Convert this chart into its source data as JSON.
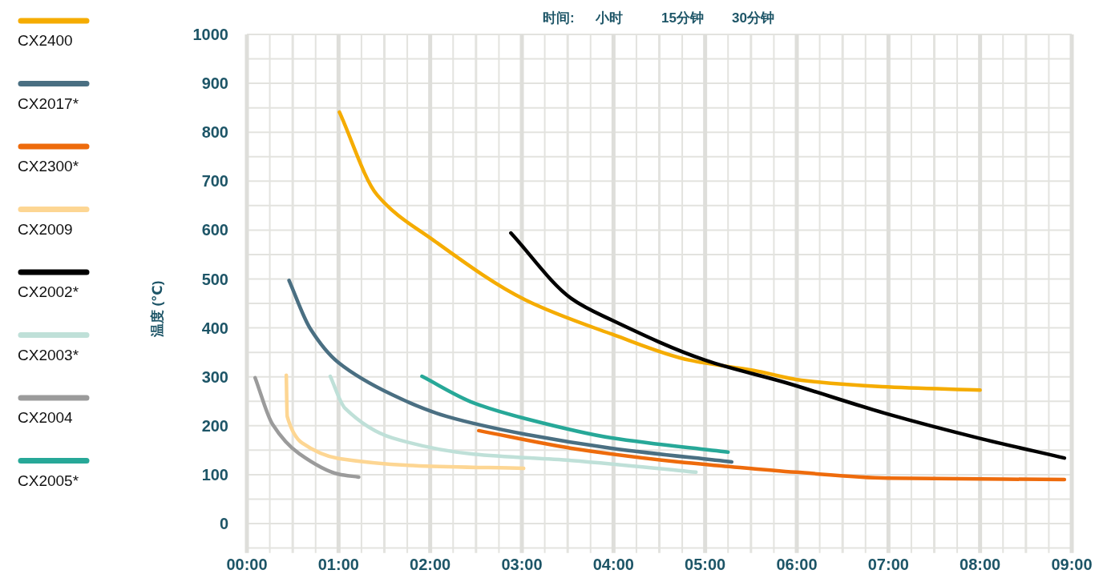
{
  "chart_data": {
    "type": "line",
    "ylabel": "温度 (℃)",
    "annotations": [
      "时间:",
      "小时",
      "15分钟",
      "30分钟"
    ],
    "xlim": [
      0,
      9
    ],
    "ylim": [
      -60,
      1000
    ],
    "xticks": [
      {
        "value": 0,
        "label": "00:00"
      },
      {
        "value": 1,
        "label": "01:00"
      },
      {
        "value": 2,
        "label": "02:00"
      },
      {
        "value": 3,
        "label": "03:00"
      },
      {
        "value": 4,
        "label": "04:00"
      },
      {
        "value": 5,
        "label": "05:00"
      },
      {
        "value": 6,
        "label": "06:00"
      },
      {
        "value": 7,
        "label": "07:00"
      },
      {
        "value": 8,
        "label": "08:00"
      },
      {
        "value": 9,
        "label": "09:00"
      }
    ],
    "yticks": [
      0,
      100,
      200,
      300,
      400,
      500,
      600,
      700,
      800,
      900,
      1000
    ],
    "grid": true,
    "legend": "left",
    "marker": "none",
    "line_style": "solid",
    "series": [
      {
        "name": "CX2400",
        "color": "#f5ac00",
        "x": [
          1.01,
          1.42,
          2.03,
          3.04,
          4.0,
          4.83,
          5.53,
          6.05,
          6.93,
          8.0
        ],
        "values": [
          841,
          672,
          580,
          457,
          386,
          334,
          313,
          293,
          280,
          273
        ]
      },
      {
        "name": "CX2017*",
        "color": "#4a6f82",
        "x": [
          0.46,
          0.69,
          1.0,
          1.59,
          2.18,
          3.05,
          3.98,
          5.29
        ],
        "values": [
          497,
          399,
          329,
          263,
          219,
          182,
          154,
          126
        ]
      },
      {
        "name": "CX2300*",
        "color": "#ee6b0c",
        "x": [
          2.53,
          3.54,
          4.71,
          5.18,
          5.99,
          6.99,
          8.92
        ],
        "values": [
          190,
          154,
          126,
          118,
          105,
          93,
          90
        ]
      },
      {
        "name": "CX2009",
        "color": "#fdd693",
        "x": [
          0.43,
          0.44,
          0.6,
          1.0,
          1.88,
          3.02
        ],
        "values": [
          303,
          219,
          165,
          133,
          118,
          113
        ]
      },
      {
        "name": "CX2002*",
        "color": "#000000",
        "x": [
          2.88,
          3.54,
          3.98,
          5.0,
          5.88,
          6.99,
          7.98,
          8.92
        ],
        "values": [
          594,
          460,
          416,
          334,
          288,
          224,
          175,
          134
        ]
      },
      {
        "name": "CX2003*",
        "color": "#bfe0d8",
        "x": [
          0.91,
          1.07,
          1.59,
          2.47,
          3.54,
          4.9
        ],
        "values": [
          301,
          236,
          175,
          142,
          129,
          105
        ]
      },
      {
        "name": "CX2004",
        "color": "#9b9b9b",
        "x": [
          0.09,
          0.28,
          0.57,
          1.0,
          1.22
        ],
        "values": [
          298,
          203,
          143,
          101,
          95
        ]
      },
      {
        "name": "CX2005*",
        "color": "#27a898",
        "x": [
          1.91,
          2.47,
          3.05,
          3.98,
          5.25
        ],
        "values": [
          301,
          247,
          214,
          175,
          146
        ]
      }
    ]
  }
}
